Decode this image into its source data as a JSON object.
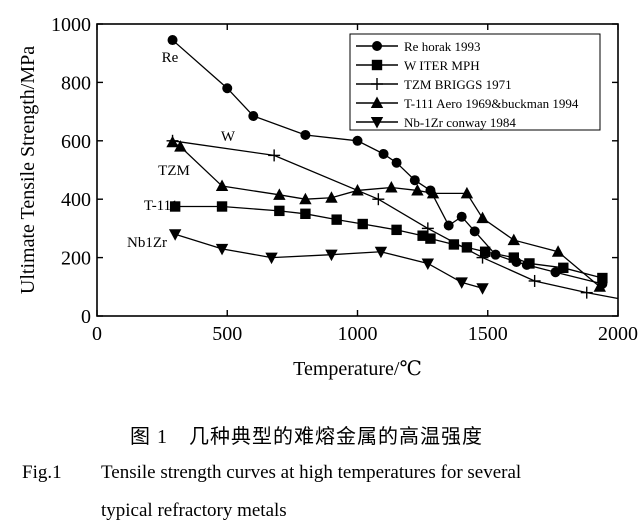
{
  "chart_data": {
    "type": "line",
    "xlabel": "Temperature/℃",
    "ylabel": "Ultimate Tensile Strength/MPa",
    "xlim": [
      0,
      2000
    ],
    "ylim": [
      0,
      1000
    ],
    "xticks": [
      0,
      500,
      1000,
      1500,
      2000
    ],
    "yticks": [
      0,
      200,
      400,
      600,
      800,
      1000
    ],
    "legend_position": "top-right",
    "series": [
      {
        "name": "Re horak 1993",
        "label": "Re",
        "marker": "circle",
        "x": [
          290,
          500,
          600,
          800,
          1000,
          1100,
          1150,
          1220,
          1280,
          1350,
          1400,
          1450,
          1530,
          1610,
          1650,
          1760,
          1940
        ],
        "y": [
          945,
          780,
          685,
          620,
          600,
          555,
          525,
          465,
          430,
          310,
          340,
          290,
          210,
          185,
          175,
          150,
          110
        ]
      },
      {
        "name": "W ITER MPH",
        "label": "W",
        "marker": "square",
        "x": [
          300,
          480,
          700,
          800,
          920,
          1020,
          1150,
          1250,
          1280,
          1370,
          1420,
          1490,
          1600,
          1660,
          1790,
          1940
        ],
        "y": [
          375,
          375,
          360,
          350,
          330,
          315,
          295,
          275,
          265,
          245,
          235,
          220,
          200,
          180,
          165,
          130
        ]
      },
      {
        "name": "TZM BRIGGS 1971",
        "label": "TZM",
        "marker": "plus",
        "x": [
          290,
          680,
          1080,
          1270,
          1480,
          1680,
          1880,
          2000
        ],
        "y": [
          600,
          550,
          400,
          300,
          200,
          120,
          80,
          60
        ]
      },
      {
        "name": "T-111 Aero 1969&buckman 1994",
        "label": "T-111",
        "marker": "triangle-up",
        "x": [
          290,
          320,
          480,
          700,
          800,
          900,
          1000,
          1130,
          1230,
          1290,
          1420,
          1480,
          1600,
          1770,
          1930
        ],
        "y": [
          595,
          580,
          445,
          415,
          400,
          405,
          430,
          440,
          430,
          420,
          420,
          335,
          260,
          220,
          100
        ]
      },
      {
        "name": "Nb-1Zr conway 1984",
        "label": "Nb1Zr",
        "marker": "triangle-down",
        "x": [
          300,
          480,
          670,
          900,
          1090,
          1270,
          1400,
          1480
        ],
        "y": [
          280,
          230,
          200,
          210,
          220,
          180,
          115,
          95
        ]
      }
    ]
  },
  "caption": {
    "cn": "图 1　几种典型的难熔金属的高温强度",
    "en_number": "Fig.1",
    "en_line1": "Tensile strength curves at high temperatures for several",
    "en_line2": "typical refractory metals"
  }
}
